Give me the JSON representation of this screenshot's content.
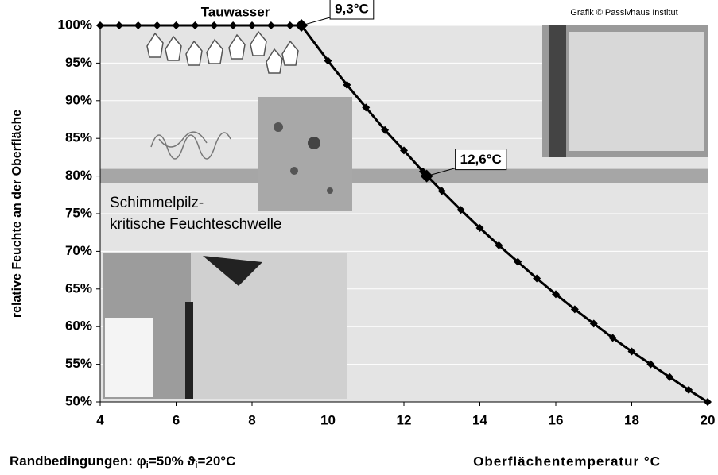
{
  "chart_data": {
    "type": "line",
    "credit": "Grafik © Passivhaus Institut",
    "y_label": "relative Feuchte an der Oberfläche",
    "x_label": "Oberflächentemperatur °C",
    "conditions": [
      "Randbedingungen: φ",
      "i",
      "=50% ϑ",
      "i",
      "=20°C"
    ],
    "condensation_label": "Tauwasser",
    "threshold_label": [
      "Schimmelpilz-",
      "kritische Feuchteschwelle"
    ],
    "threshold": 80,
    "annotations": [
      {
        "text": "9,3°C",
        "x": 9.3,
        "y": 100
      },
      {
        "text": "12,6°C",
        "x": 12.6,
        "y": 80
      }
    ],
    "x": [
      4,
      4.5,
      5,
      5.5,
      6,
      6.5,
      7,
      7.5,
      8,
      8.5,
      9,
      9.3,
      10,
      10.5,
      11,
      11.5,
      12,
      12.5,
      13,
      13.5,
      14,
      14.5,
      15,
      15.5,
      16,
      16.5,
      17,
      17.5,
      18,
      18.5,
      19,
      19.5,
      20
    ],
    "series": [
      {
        "color": "#000000",
        "values": [
          100,
          100,
          100,
          100,
          100,
          100,
          100,
          100,
          100,
          100,
          100,
          100,
          95.3,
          92.1,
          89.1,
          86.1,
          83.4,
          80.6,
          78.0,
          75.5,
          73.1,
          70.8,
          68.6,
          66.4,
          64.3,
          62.3,
          60.4,
          58.5,
          56.7,
          55.0,
          53.3,
          51.6,
          50.0
        ]
      }
    ],
    "xlim": [
      4,
      20
    ],
    "xticks": [
      4,
      6,
      8,
      10,
      12,
      14,
      16,
      18,
      20
    ],
    "ylim": [
      50,
      100
    ],
    "yticks": [
      {
        "value": 50,
        "label": "50%"
      },
      {
        "value": 55,
        "label": "55%"
      },
      {
        "value": 60,
        "label": "60%"
      },
      {
        "value": 65,
        "label": "65%"
      },
      {
        "value": 70,
        "label": "70%"
      },
      {
        "value": 75,
        "label": "75%"
      },
      {
        "value": 80,
        "label": "80%"
      },
      {
        "value": 85,
        "label": "85%"
      },
      {
        "value": 90,
        "label": "90%"
      },
      {
        "value": 95,
        "label": "95%"
      },
      {
        "value": 100,
        "label": "100%"
      }
    ],
    "grid": true
  }
}
